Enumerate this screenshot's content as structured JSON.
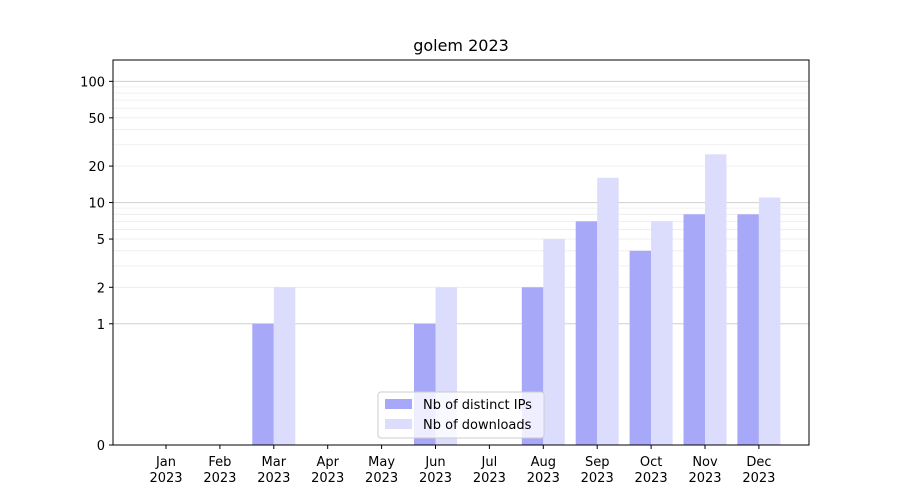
{
  "chart_data": {
    "type": "bar",
    "title": "golem 2023",
    "xlabel": "",
    "ylabel": "",
    "yscale": "symlog",
    "ylim": [
      0,
      150
    ],
    "yticks": [
      0,
      1,
      2,
      5,
      10,
      20,
      50,
      100
    ],
    "ytick_labels": [
      "0",
      "1",
      "2",
      "5",
      "10",
      "20",
      "50",
      "100"
    ],
    "categories": [
      "Jan\n2023",
      "Feb\n2023",
      "Mar\n2023",
      "Apr\n2023",
      "May\n2023",
      "Jun\n2023",
      "Jul\n2023",
      "Aug\n2023",
      "Sep\n2023",
      "Oct\n2023",
      "Nov\n2023",
      "Dec\n2023"
    ],
    "category_lines": [
      [
        "Jan",
        "2023"
      ],
      [
        "Feb",
        "2023"
      ],
      [
        "Mar",
        "2023"
      ],
      [
        "Apr",
        "2023"
      ],
      [
        "May",
        "2023"
      ],
      [
        "Jun",
        "2023"
      ],
      [
        "Jul",
        "2023"
      ],
      [
        "Aug",
        "2023"
      ],
      [
        "Sep",
        "2023"
      ],
      [
        "Oct",
        "2023"
      ],
      [
        "Nov",
        "2023"
      ],
      [
        "Dec",
        "2023"
      ]
    ],
    "series": [
      {
        "name": "Nb of distinct IPs",
        "color": "#a8a8f8",
        "values": [
          0,
          0,
          1,
          0,
          0,
          1,
          0,
          2,
          7,
          4,
          8,
          8
        ]
      },
      {
        "name": "Nb of downloads",
        "color": "#dcdcfc",
        "values": [
          0,
          0,
          2,
          0,
          0,
          2,
          0,
          5,
          16,
          7,
          25,
          11
        ]
      }
    ],
    "grid": true,
    "legend_position": "lower center"
  }
}
